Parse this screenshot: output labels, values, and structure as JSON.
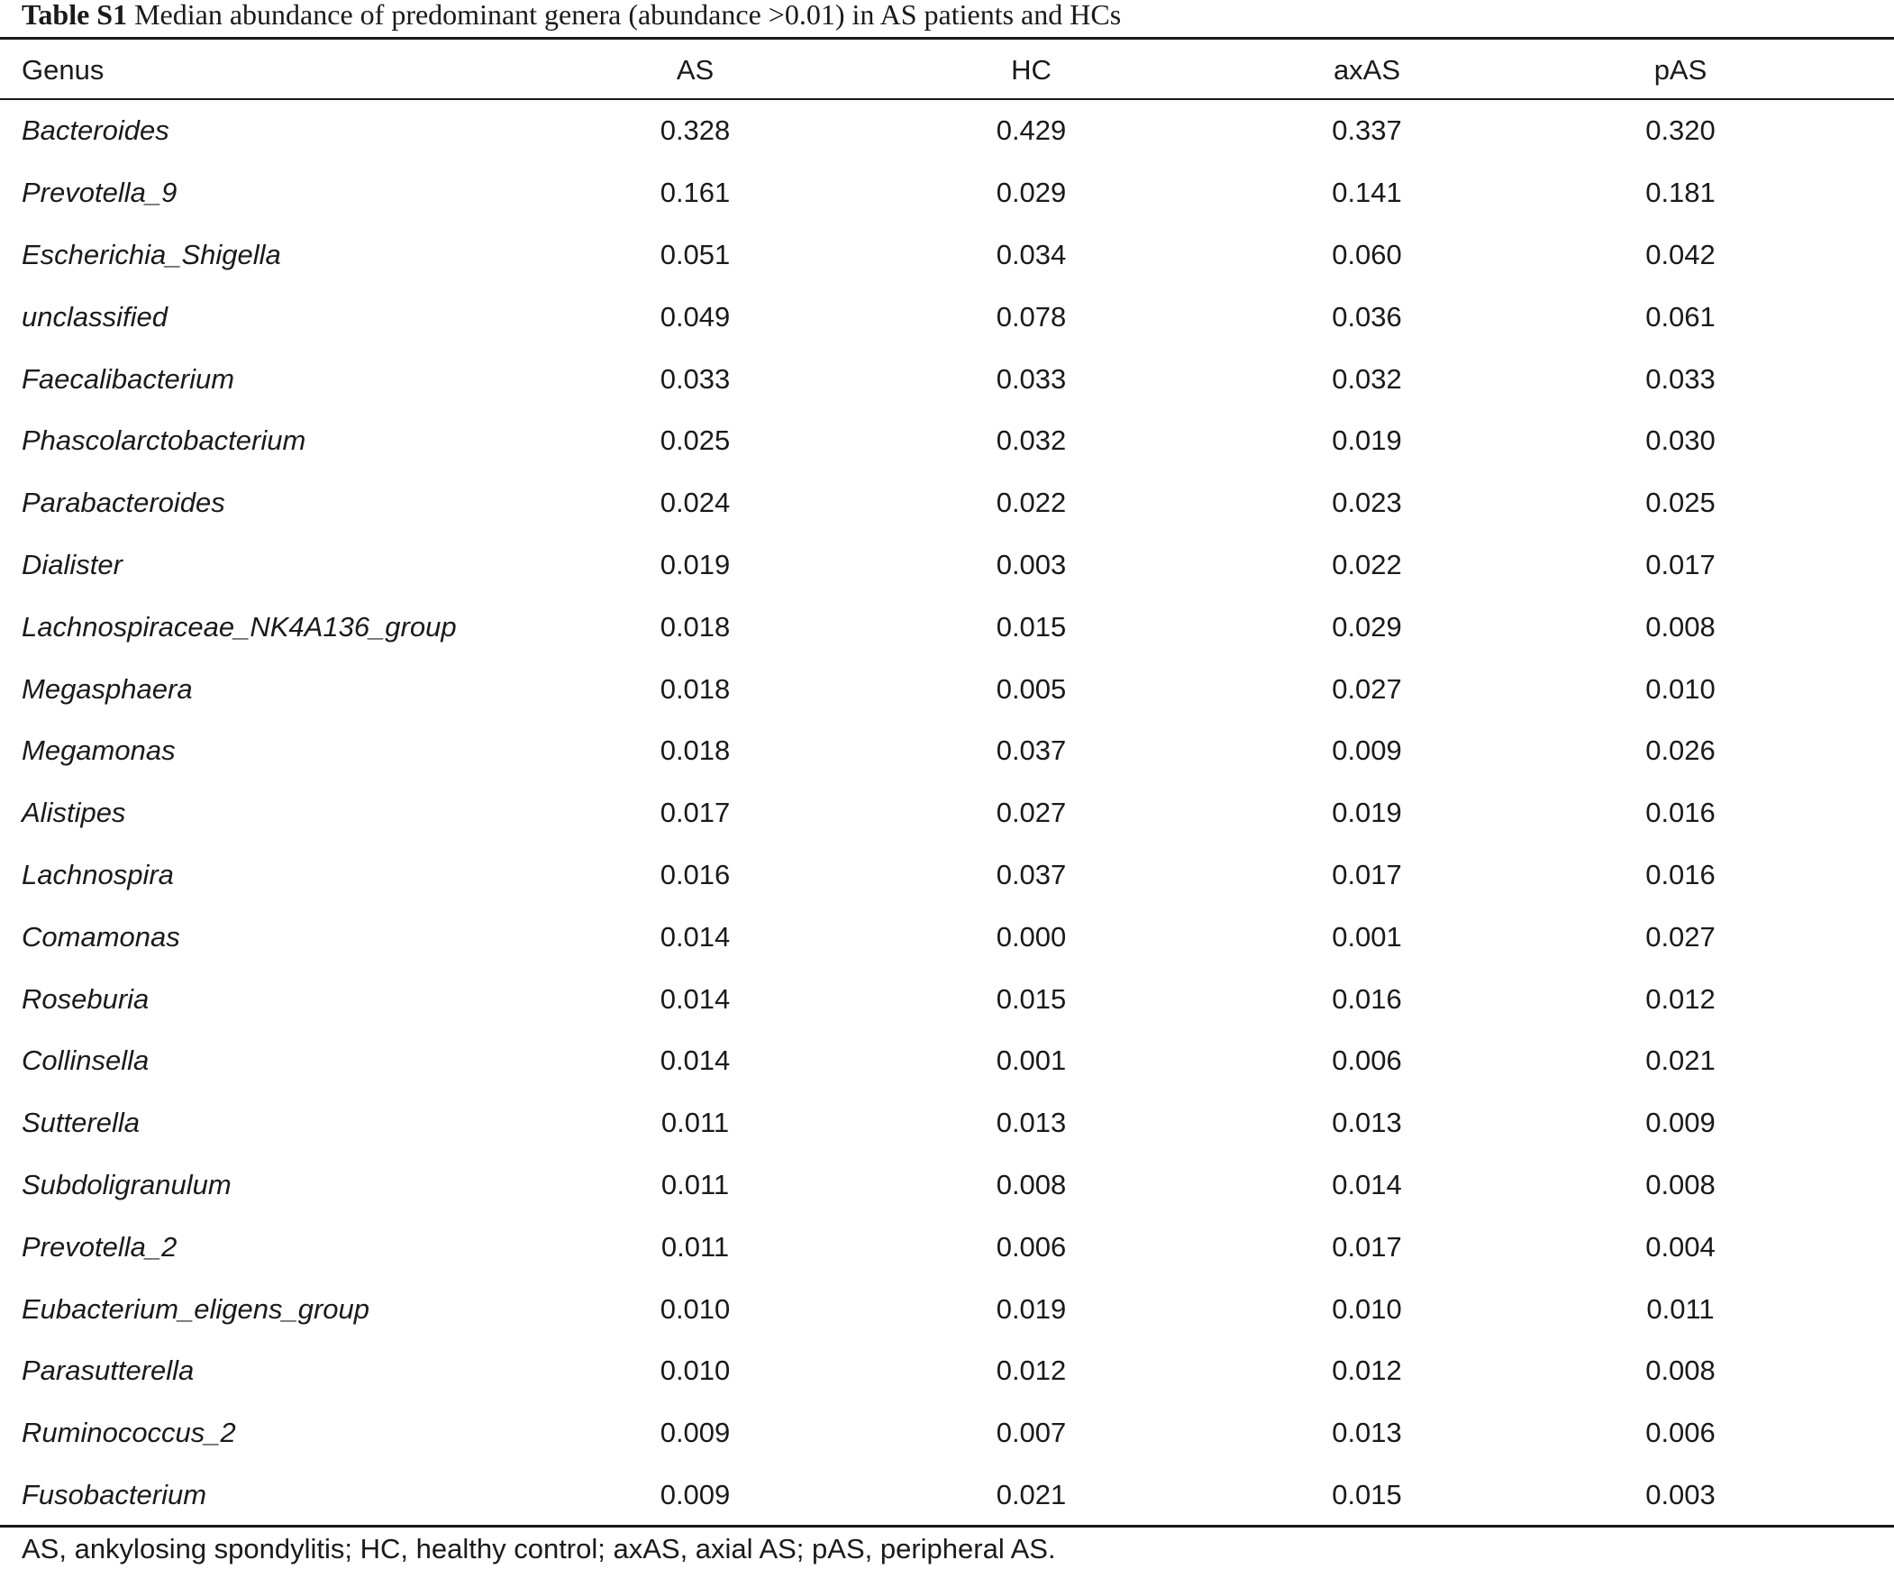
{
  "caption": {
    "label": "Table S1",
    "text": "Median abundance of predominant genera (abundance >0.01) in AS patients and HCs"
  },
  "columns": [
    "Genus",
    "AS",
    "HC",
    "axAS",
    "pAS"
  ],
  "rows": [
    {
      "genus": "Bacteroides",
      "AS": "0.328",
      "HC": "0.429",
      "axAS": "0.337",
      "pAS": "0.320"
    },
    {
      "genus": "Prevotella_9",
      "AS": "0.161",
      "HC": "0.029",
      "axAS": "0.141",
      "pAS": "0.181"
    },
    {
      "genus": "Escherichia_Shigella",
      "AS": "0.051",
      "HC": "0.034",
      "axAS": "0.060",
      "pAS": "0.042"
    },
    {
      "genus": "unclassified",
      "AS": "0.049",
      "HC": "0.078",
      "axAS": "0.036",
      "pAS": "0.061"
    },
    {
      "genus": "Faecalibacterium",
      "AS": "0.033",
      "HC": "0.033",
      "axAS": "0.032",
      "pAS": "0.033"
    },
    {
      "genus": "Phascolarctobacterium",
      "AS": "0.025",
      "HC": "0.032",
      "axAS": "0.019",
      "pAS": "0.030"
    },
    {
      "genus": "Parabacteroides",
      "AS": "0.024",
      "HC": "0.022",
      "axAS": "0.023",
      "pAS": "0.025"
    },
    {
      "genus": "Dialister",
      "AS": "0.019",
      "HC": "0.003",
      "axAS": "0.022",
      "pAS": "0.017"
    },
    {
      "genus": "Lachnospiraceae_NK4A136_group",
      "AS": "0.018",
      "HC": "0.015",
      "axAS": "0.029",
      "pAS": "0.008"
    },
    {
      "genus": "Megasphaera",
      "AS": "0.018",
      "HC": "0.005",
      "axAS": "0.027",
      "pAS": "0.010"
    },
    {
      "genus": "Megamonas",
      "AS": "0.018",
      "HC": "0.037",
      "axAS": "0.009",
      "pAS": "0.026"
    },
    {
      "genus": "Alistipes",
      "AS": "0.017",
      "HC": "0.027",
      "axAS": "0.019",
      "pAS": "0.016"
    },
    {
      "genus": "Lachnospira",
      "AS": "0.016",
      "HC": "0.037",
      "axAS": "0.017",
      "pAS": "0.016"
    },
    {
      "genus": "Comamonas",
      "AS": "0.014",
      "HC": "0.000",
      "axAS": "0.001",
      "pAS": "0.027"
    },
    {
      "genus": "Roseburia",
      "AS": "0.014",
      "HC": "0.015",
      "axAS": "0.016",
      "pAS": "0.012"
    },
    {
      "genus": "Collinsella",
      "AS": "0.014",
      "HC": "0.001",
      "axAS": "0.006",
      "pAS": "0.021"
    },
    {
      "genus": "Sutterella",
      "AS": "0.011",
      "HC": "0.013",
      "axAS": "0.013",
      "pAS": "0.009"
    },
    {
      "genus": "Subdoligranulum",
      "AS": "0.011",
      "HC": "0.008",
      "axAS": "0.014",
      "pAS": "0.008"
    },
    {
      "genus": "Prevotella_2",
      "AS": "0.011",
      "HC": "0.006",
      "axAS": "0.017",
      "pAS": "0.004"
    },
    {
      "genus": "Eubacterium_eligens_group",
      "AS": "0.010",
      "HC": "0.019",
      "axAS": "0.010",
      "pAS": "0.011"
    },
    {
      "genus": "Parasutterella",
      "AS": "0.010",
      "HC": "0.012",
      "axAS": "0.012",
      "pAS": "0.008"
    },
    {
      "genus": "Ruminococcus_2",
      "AS": "0.009",
      "HC": "0.007",
      "axAS": "0.013",
      "pAS": "0.006"
    },
    {
      "genus": "Fusobacterium",
      "AS": "0.009",
      "HC": "0.021",
      "axAS": "0.015",
      "pAS": "0.003"
    }
  ],
  "footnote": "AS, ankylosing spondylitis; HC, healthy control; axAS, axial AS; pAS, peripheral AS."
}
